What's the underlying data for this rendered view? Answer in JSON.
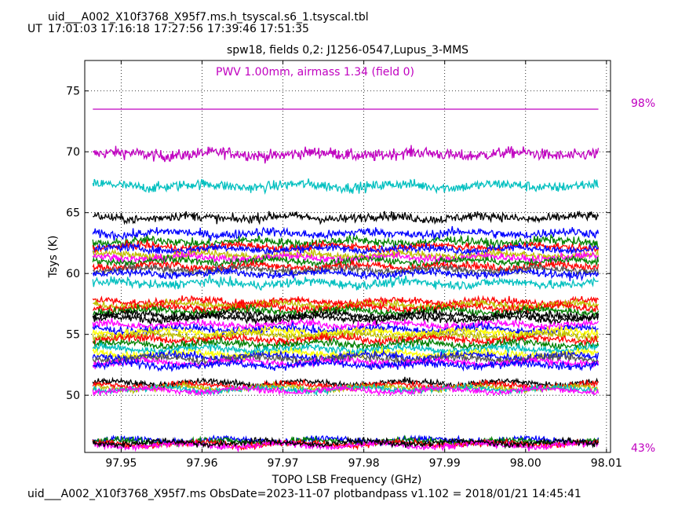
{
  "header": {
    "filename": "uid___A002_X10f3768_X95f7.ms.h_tsyscal.s6_1.tsyscal.tbl",
    "ut_label": "UT",
    "ut_times": [
      "17:01:03",
      "17:16:18",
      "17:27:56",
      "17:39:46",
      "17:51:35"
    ]
  },
  "chart_data": {
    "type": "line",
    "title": "spw18,  fields 0,2: J1256-0547,Lupus_3-MMS",
    "annotation": "PWV 1.00mm, airmass 1.34 (field 0)",
    "xlabel": "TOPO LSB Frequency (GHz)",
    "ylabel": "Tsys (K)",
    "xlim": [
      97.9455,
      98.0105
    ],
    "ylim": [
      45.3,
      77.5
    ],
    "x_range": [
      97.9465,
      98.009
    ],
    "x_ticks": [
      97.95,
      97.96,
      97.97,
      97.98,
      97.99,
      98.0,
      98.01
    ],
    "x_tick_labels": [
      "97.95",
      "97.96",
      "97.97",
      "97.98",
      "97.99",
      "98.00",
      "98.01"
    ],
    "y_ticks": [
      50,
      55,
      60,
      65,
      70,
      75
    ],
    "y_tick_labels": [
      "50",
      "55",
      "60",
      "65",
      "70",
      "75"
    ],
    "grid": true,
    "atm_transmission": {
      "color": "#c000c0",
      "max_label": "98%",
      "min_label": "43%",
      "level": 73.5
    },
    "series": [
      {
        "color": "#c000c0",
        "level": 69.8,
        "noise": 0.45
      },
      {
        "color": "#00bfbf",
        "level": 67.2,
        "noise": 0.4
      },
      {
        "color": "#000000",
        "level": 64.6,
        "noise": 0.35
      },
      {
        "color": "#0000ff",
        "level": 63.3,
        "noise": 0.35
      },
      {
        "color": "#008000",
        "level": 62.6,
        "noise": 0.35
      },
      {
        "color": "#ff0000",
        "level": 62.2,
        "noise": 0.3
      },
      {
        "color": "#0000ff",
        "level": 62.0,
        "noise": 0.3
      },
      {
        "color": "#bfbf00",
        "level": 61.5,
        "noise": 0.3
      },
      {
        "color": "#ff00ff",
        "level": 61.3,
        "noise": 0.3
      },
      {
        "color": "#008000",
        "level": 61.0,
        "noise": 0.3
      },
      {
        "color": "#ff0000",
        "level": 60.6,
        "noise": 0.3
      },
      {
        "color": "#555555",
        "level": 60.3,
        "noise": 0.3
      },
      {
        "color": "#0000ff",
        "level": 60.0,
        "noise": 0.3
      },
      {
        "color": "#00bfbf",
        "level": 59.2,
        "noise": 0.35
      },
      {
        "color": "#ff0000",
        "level": 57.7,
        "noise": 0.3
      },
      {
        "color": "#bfbf00",
        "level": 57.4,
        "noise": 0.3
      },
      {
        "color": "#ff0000",
        "level": 57.2,
        "noise": 0.3
      },
      {
        "color": "#008000",
        "level": 56.9,
        "noise": 0.3
      },
      {
        "color": "#000000",
        "level": 56.6,
        "noise": 0.3
      },
      {
        "color": "#000000",
        "level": 56.3,
        "noise": 0.3
      },
      {
        "color": "#ff00ff",
        "level": 55.8,
        "noise": 0.3
      },
      {
        "color": "#0000ff",
        "level": 55.4,
        "noise": 0.3
      },
      {
        "color": "#ffff00",
        "level": 55.2,
        "noise": 0.3
      },
      {
        "color": "#bfbf00",
        "level": 54.9,
        "noise": 0.3
      },
      {
        "color": "#ff0000",
        "level": 54.6,
        "noise": 0.3
      },
      {
        "color": "#008000",
        "level": 54.2,
        "noise": 0.3
      },
      {
        "color": "#00bfbf",
        "level": 53.8,
        "noise": 0.3
      },
      {
        "color": "#ffff00",
        "level": 53.4,
        "noise": 0.3
      },
      {
        "color": "#0000ff",
        "level": 53.2,
        "noise": 0.3
      },
      {
        "color": "#555555",
        "level": 53.0,
        "noise": 0.3
      },
      {
        "color": "#ff00ff",
        "level": 52.7,
        "noise": 0.3
      },
      {
        "color": "#0000ff",
        "level": 52.5,
        "noise": 0.3
      },
      {
        "color": "#000000",
        "level": 51.0,
        "noise": 0.25
      },
      {
        "color": "#ff0000",
        "level": 50.8,
        "noise": 0.25
      },
      {
        "color": "#bfbf00",
        "level": 50.6,
        "noise": 0.25
      },
      {
        "color": "#00bfbf",
        "level": 50.5,
        "noise": 0.25
      },
      {
        "color": "#ff00ff",
        "level": 50.4,
        "noise": 0.25
      },
      {
        "color": "#0000ff",
        "level": 46.3,
        "noise": 0.25
      },
      {
        "color": "#008000",
        "level": 46.2,
        "noise": 0.25
      },
      {
        "color": "#ff0000",
        "level": 46.0,
        "noise": 0.25
      },
      {
        "color": "#ff00ff",
        "level": 45.9,
        "noise": 0.25
      },
      {
        "color": "#000000",
        "level": 46.1,
        "noise": 0.25
      }
    ]
  },
  "footer": {
    "text": "uid___A002_X10f3768_X95f7.ms  ObsDate=2023-11-07   plotbandpass v1.102 = 2018/01/21 14:45:41"
  }
}
